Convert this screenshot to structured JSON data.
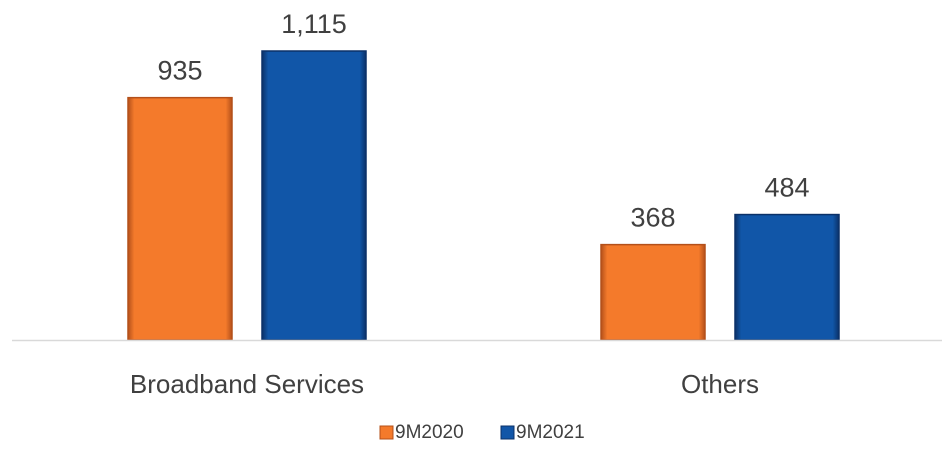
{
  "chart_data": {
    "type": "bar",
    "title": "",
    "xlabel": "",
    "ylabel": "",
    "categories": [
      "Broadband Services",
      "Others"
    ],
    "series": [
      {
        "name": "9M2020",
        "values": [
          935,
          368
        ],
        "labels": [
          "935",
          "368"
        ],
        "color": "#F47A2B",
        "edge_color": "#B4501A"
      },
      {
        "name": "9M2021",
        "values": [
          1115,
          484
        ],
        "labels": [
          "1,115",
          "484"
        ],
        "color": "#1156A8",
        "edge_color": "#0B3168"
      }
    ],
    "ylim": [
      0,
      1115
    ],
    "grid": false,
    "legend": "bottom-center",
    "axis_color": "#D9D9D9",
    "text_color": "#404040"
  }
}
